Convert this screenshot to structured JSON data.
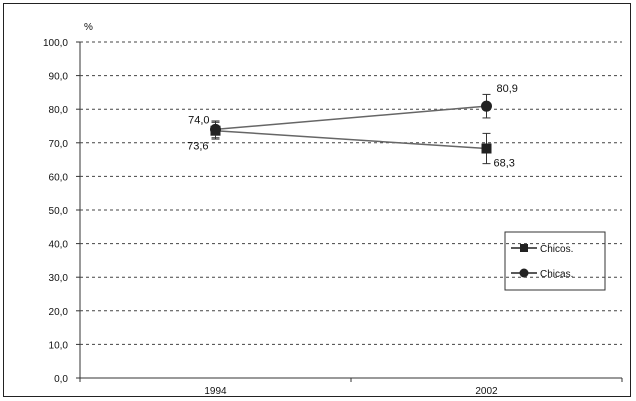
{
  "chart_data": {
    "type": "line",
    "title": "",
    "xlabel": "",
    "ylabel": "%",
    "ylim": [
      0,
      100
    ],
    "yticks": [
      "100,0",
      "90,0",
      "80,0",
      "70,0",
      "60,0",
      "50,0",
      "40,0",
      "30,0",
      "20,0",
      "10,0",
      "0,0"
    ],
    "x": [
      "1994",
      "2002"
    ],
    "grid": true,
    "legend_position": "right",
    "series": [
      {
        "name": "Chicos.",
        "marker": "square",
        "values": [
          73.6,
          68.3
        ],
        "error": [
          2.5,
          4.5
        ],
        "labels": [
          "73,6",
          "68,3"
        ],
        "color": "#222222"
      },
      {
        "name": "Chicas.",
        "marker": "circle",
        "values": [
          74.0,
          80.9
        ],
        "error": [
          2.5,
          3.5
        ],
        "labels": [
          "74,0",
          "80,9"
        ],
        "color": "#222222"
      }
    ]
  }
}
